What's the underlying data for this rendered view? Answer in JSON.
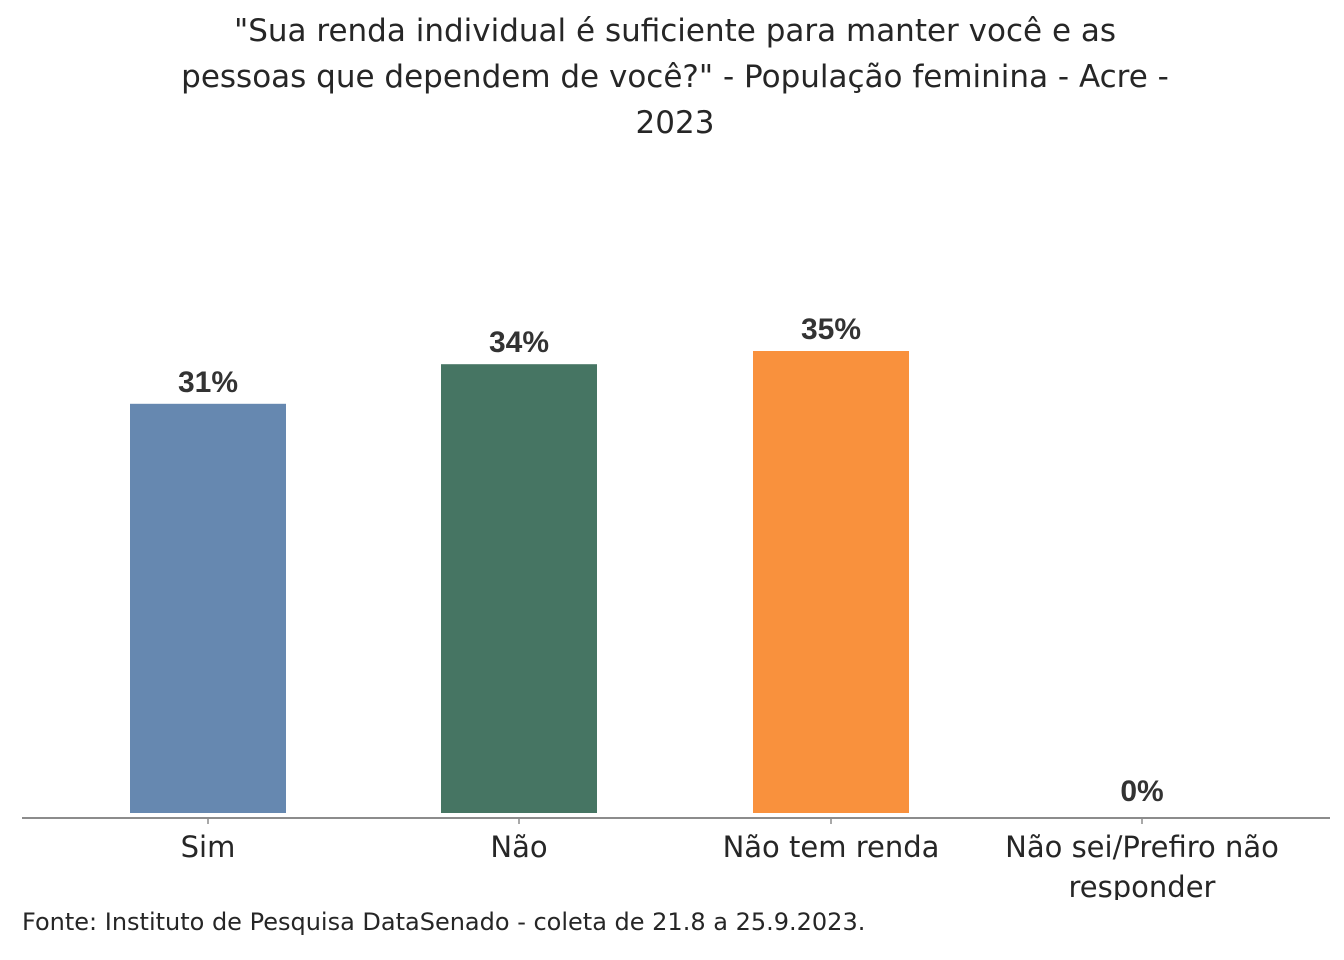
{
  "chart_data": {
    "type": "bar",
    "title_lines": [
      "\"Sua renda individual é suficiente para manter você e as",
      "pessoas que dependem de você?\" - População feminina - Acre -",
      "2023"
    ],
    "categories": [
      [
        "Sim"
      ],
      [
        "Não"
      ],
      [
        "Não tem renda"
      ],
      [
        "Não sei/Prefiro não",
        "responder"
      ]
    ],
    "values": [
      31,
      34,
      35,
      0
    ],
    "data_labels": [
      "31%",
      "34%",
      "35%",
      "0%"
    ],
    "colors": [
      "#6688b0",
      "#467563",
      "#f9913d",
      "#cccccc"
    ],
    "xlabel": "",
    "ylabel": "",
    "ylim": [
      0,
      35
    ],
    "grid": false,
    "legend": "none"
  },
  "footer": "Fonte: Instituto de Pesquisa DataSenado - coleta de 21.8 a 25.9.2023."
}
